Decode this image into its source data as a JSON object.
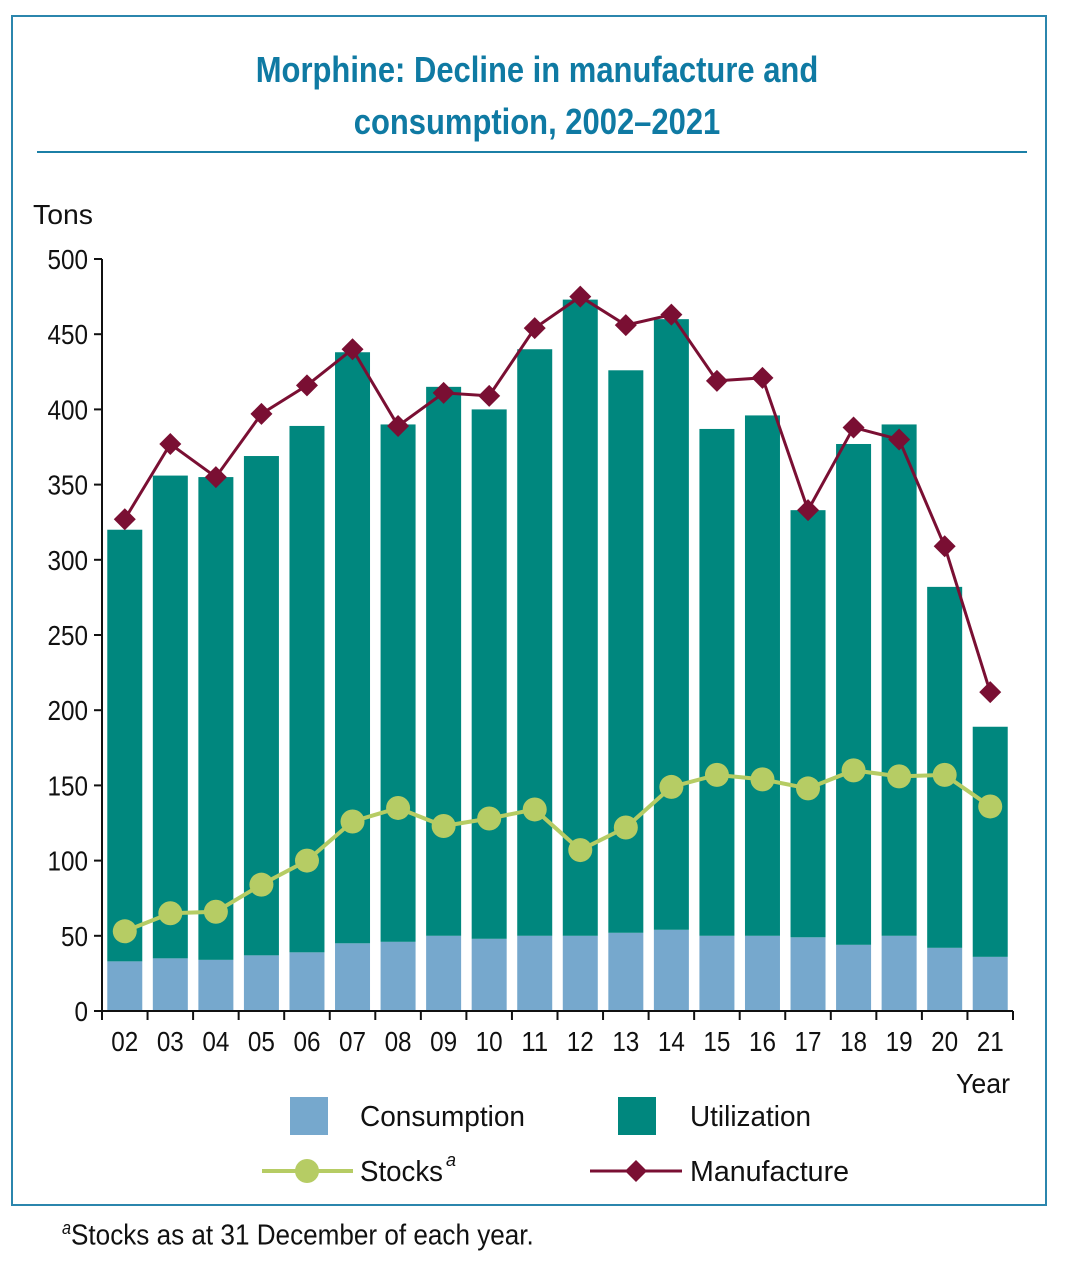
{
  "title_line1": "Morphine: Decline in manufacture and",
  "title_line2": "consumption, 2002–2021",
  "footnote_marker": "a",
  "footnote_text": "Stocks as at 31 December of each year.",
  "colors": {
    "consumption": "#76a8cd",
    "utilization": "#00877e",
    "stocks": "#b6cc64",
    "manufacture": "#7a0f33",
    "title": "#0f7aa3"
  },
  "chart_data": {
    "type": "bar",
    "title": "Morphine: Decline in manufacture and consumption, 2002–2021",
    "ylabel": "Tons",
    "xlabel": "Year",
    "ylim": [
      0,
      500
    ],
    "yticks": [
      0,
      50,
      100,
      150,
      200,
      250,
      300,
      350,
      400,
      450,
      500
    ],
    "grid": false,
    "legend_placement": "bottom",
    "categories": [
      "02",
      "03",
      "04",
      "05",
      "06",
      "07",
      "08",
      "09",
      "10",
      "11",
      "12",
      "13",
      "14",
      "15",
      "16",
      "17",
      "18",
      "19",
      "20",
      "21"
    ],
    "series": [
      {
        "name": "Consumption",
        "type": "bar",
        "stack": "total",
        "values": [
          33,
          35,
          34,
          37,
          39,
          45,
          46,
          50,
          48,
          50,
          50,
          52,
          54,
          50,
          50,
          49,
          44,
          50,
          42,
          36
        ]
      },
      {
        "name": "Utilization",
        "type": "bar",
        "stack": "total",
        "values": [
          287,
          321,
          321,
          332,
          350,
          393,
          344,
          365,
          352,
          390,
          423,
          374,
          406,
          337,
          346,
          284,
          333,
          340,
          240,
          153
        ]
      },
      {
        "name": "Stocks",
        "name_superscript": "a",
        "type": "line",
        "marker": "circle",
        "values": [
          53,
          65,
          66,
          84,
          100,
          126,
          135,
          123,
          128,
          134,
          107,
          122,
          149,
          157,
          154,
          148,
          160,
          156,
          157,
          136
        ]
      },
      {
        "name": "Manufacture",
        "type": "line",
        "marker": "diamond",
        "values": [
          327,
          377,
          355,
          397,
          416,
          440,
          389,
          411,
          409,
          454,
          475,
          456,
          463,
          419,
          421,
          333,
          388,
          380,
          309,
          212
        ]
      }
    ]
  }
}
